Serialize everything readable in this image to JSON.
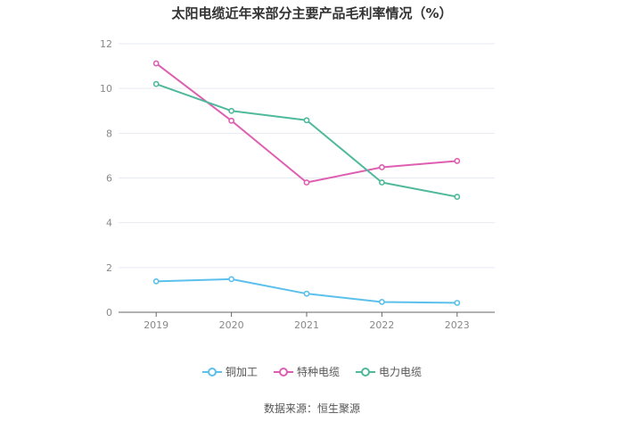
{
  "chart_data": {
    "type": "line",
    "title": "太阳电缆近年来部分主要产品毛利率情况（%）",
    "categories": [
      "2019",
      "2020",
      "2021",
      "2022",
      "2023"
    ],
    "series": [
      {
        "name": "铜加工",
        "color": "#5bc0eb",
        "values": [
          1.38,
          1.48,
          0.83,
          0.46,
          0.42
        ]
      },
      {
        "name": "特种电缆",
        "color": "#de5fb1",
        "values": [
          11.12,
          8.56,
          5.8,
          6.48,
          6.76
        ]
      },
      {
        "name": "电力电缆",
        "color": "#4fb99b",
        "values": [
          10.2,
          9.0,
          8.58,
          5.8,
          5.16
        ]
      }
    ],
    "ylim": [
      0,
      12
    ],
    "yticks": [
      0,
      2,
      4,
      6,
      8,
      10,
      12
    ],
    "grid": true,
    "legend_position": "bottom"
  },
  "source": "数据来源：恒生聚源"
}
